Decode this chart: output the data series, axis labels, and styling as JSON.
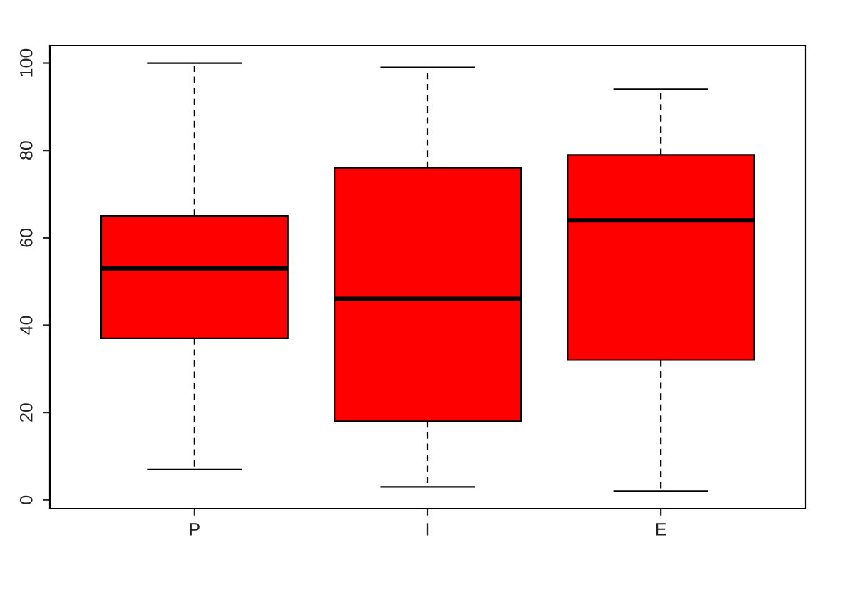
{
  "chart_data": {
    "type": "box",
    "categories": [
      "P",
      "I",
      "E"
    ],
    "series": [
      {
        "color": "#ff0000",
        "boxes": [
          {
            "low": 7,
            "q1": 37,
            "median": 53,
            "q3": 65,
            "high": 100
          },
          {
            "low": 3,
            "q1": 18,
            "median": 46,
            "q3": 76,
            "high": 99
          },
          {
            "low": 2,
            "q1": 32,
            "median": 64,
            "q3": 79,
            "high": 94
          }
        ]
      }
    ],
    "ylim": [
      -2,
      104
    ],
    "yticks": [
      0,
      20,
      40,
      60,
      80,
      100
    ]
  }
}
